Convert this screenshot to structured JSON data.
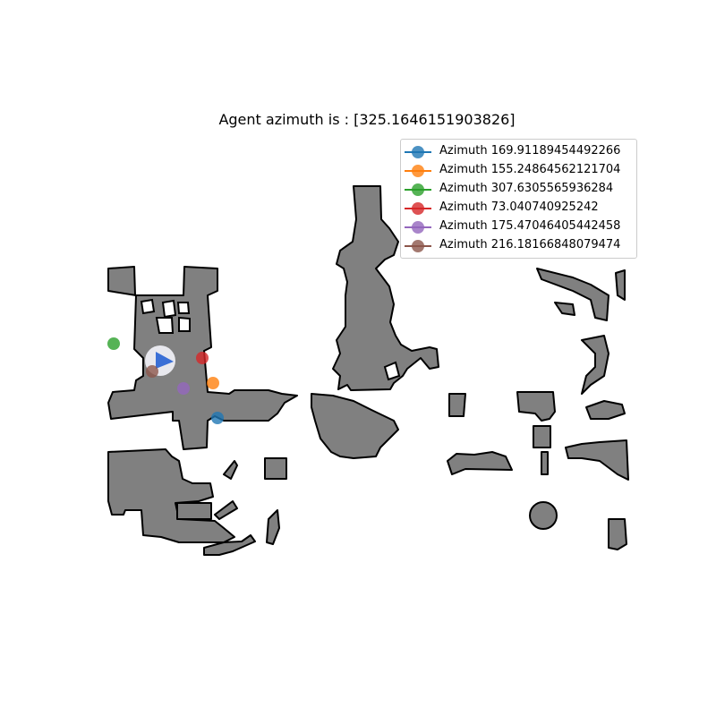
{
  "title": "Agent azimuth is : [325.1646151903826]",
  "agent": {
    "color": "#3a6fd6",
    "heading_deg": 325.1646151903826
  },
  "legend": [
    {
      "label": "Azimuth 169.91189454492266",
      "color": "#1f77b4"
    },
    {
      "label": "Azimuth 155.24864562121704",
      "color": "#ff7f0e"
    },
    {
      "label": "Azimuth 307.6305565936284",
      "color": "#2ca02c"
    },
    {
      "label": "Azimuth 73.040740925242",
      "color": "#d62728"
    },
    {
      "label": "Azimuth 175.47046405442458",
      "color": "#9467bd"
    },
    {
      "label": "Azimuth 216.18166848079474",
      "color": "#8c564b"
    }
  ],
  "colors": {
    "obstacle_fill": "#808080",
    "obstacle_edge": "#000000",
    "background": "#ffffff"
  }
}
